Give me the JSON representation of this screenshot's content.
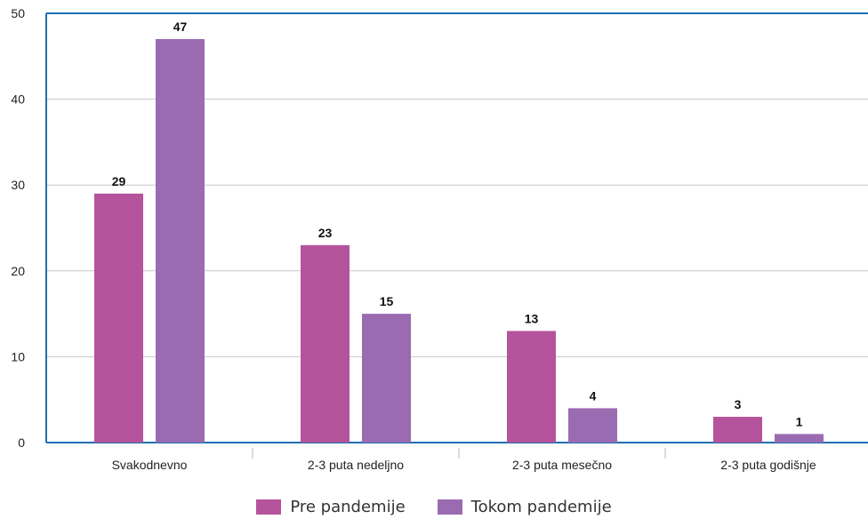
{
  "chart_data": {
    "type": "bar",
    "categories": [
      "Svakodnevno",
      "2-3 puta nedeljno",
      "2-3 puta mesečno",
      "2-3 puta godišnje"
    ],
    "series": [
      {
        "name": "Pre pandemije",
        "values": [
          29,
          23,
          13,
          3
        ],
        "color": "#b5539c"
      },
      {
        "name": "Tokom pandemije",
        "values": [
          47,
          15,
          4,
          1
        ],
        "color": "#9b6bb2"
      }
    ],
    "ylim": [
      0,
      50
    ],
    "yticks": [
      0,
      10,
      20,
      30,
      40,
      50
    ],
    "grid": true,
    "legend_position": "bottom",
    "frame_color": "#1f6fb4"
  }
}
